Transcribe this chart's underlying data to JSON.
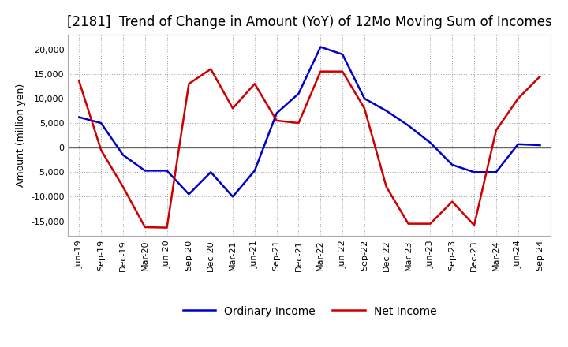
{
  "title": "[2181]  Trend of Change in Amount (YoY) of 12Mo Moving Sum of Incomes",
  "ylabel": "Amount (million yen)",
  "background_color": "#ffffff",
  "plot_bg_color": "#f8f8f8",
  "grid_color": "#999999",
  "x_labels": [
    "Jun-19",
    "Sep-19",
    "Dec-19",
    "Mar-20",
    "Jun-20",
    "Sep-20",
    "Dec-20",
    "Mar-21",
    "Jun-21",
    "Sep-21",
    "Dec-21",
    "Mar-22",
    "Jun-22",
    "Sep-22",
    "Dec-22",
    "Mar-23",
    "Jun-23",
    "Sep-23",
    "Dec-23",
    "Mar-24",
    "Jun-24",
    "Sep-24"
  ],
  "ordinary_income": [
    6200,
    5000,
    -1500,
    -4700,
    -4700,
    -9500,
    -5000,
    -10000,
    -4700,
    7000,
    11000,
    20500,
    19000,
    10000,
    7500,
    4500,
    1000,
    -3500,
    -5000,
    -5000,
    700,
    500
  ],
  "net_income": [
    13500,
    -500,
    -8000,
    -16200,
    -16300,
    13000,
    16000,
    8000,
    13000,
    5500,
    5000,
    15500,
    15500,
    8000,
    -8000,
    -15500,
    -15500,
    -11000,
    -15800,
    3500,
    10000,
    14500
  ],
  "ordinary_color": "#0000cc",
  "net_color": "#cc0000",
  "ylim": [
    -18000,
    23000
  ],
  "yticks": [
    -15000,
    -10000,
    -5000,
    0,
    5000,
    10000,
    15000,
    20000
  ],
  "line_width": 1.8,
  "title_fontsize": 12,
  "axis_label_fontsize": 9,
  "tick_fontsize": 8,
  "legend_labels": [
    "Ordinary Income",
    "Net Income"
  ],
  "legend_fontsize": 10
}
